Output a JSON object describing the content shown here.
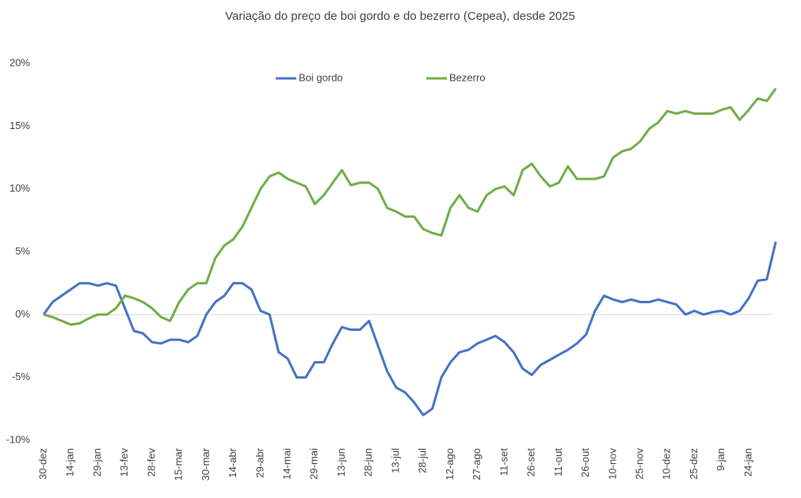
{
  "chart_data": {
    "type": "line",
    "title": "Variação do preço de boi gordo  e do bezerro (Cepea), desde 2025",
    "categories": [
      "30-dez",
      null,
      null,
      "14-jan",
      null,
      null,
      "29-jan",
      null,
      null,
      "13-fev",
      null,
      null,
      "28-fev",
      null,
      null,
      "15-mar",
      null,
      null,
      "30-mar",
      null,
      null,
      "14-abr",
      null,
      null,
      "29-abr",
      null,
      null,
      "14-mai",
      null,
      null,
      "29-mai",
      null,
      null,
      "13-jun",
      null,
      null,
      "28-jun",
      null,
      null,
      "13-jul",
      null,
      null,
      "28-jul",
      null,
      null,
      "12-ago",
      null,
      null,
      "27-ago",
      null,
      null,
      "11-set",
      null,
      null,
      "26-set",
      null,
      null,
      "11-out",
      null,
      null,
      "26-out",
      null,
      null,
      "10-nov",
      null,
      null,
      "25-nov",
      null,
      null,
      "10-dez",
      null,
      null,
      "25-dez",
      null,
      null,
      "9-jan",
      null,
      null,
      "24-jan",
      null,
      null,
      null
    ],
    "series": [
      {
        "name": "Boi gordo",
        "color": "#4472c4",
        "values": [
          0,
          1.0,
          1.5,
          2.0,
          2.5,
          2.5,
          2.3,
          2.5,
          2.3,
          0.5,
          -1.3,
          -1.5,
          -2.2,
          -2.3,
          -2.0,
          -2.0,
          -2.2,
          -1.7,
          0,
          1.0,
          1.5,
          2.5,
          2.5,
          2.0,
          0.3,
          0,
          -3.0,
          -3.5,
          -5.0,
          -5.0,
          -3.8,
          -3.8,
          -2.3,
          -1.0,
          -1.2,
          -1.2,
          -0.5,
          -2.5,
          -4.5,
          -5.8,
          -6.2,
          -7.0,
          -8.0,
          -7.5,
          -5.0,
          -3.8,
          -3.0,
          -2.8,
          -2.3,
          -2.0,
          -1.7,
          -2.2,
          -3.0,
          -4.3,
          -4.8,
          -4.0,
          -3.6,
          -3.2,
          -2.8,
          -2.3,
          -1.6,
          0.3,
          1.5,
          1.2,
          1.0,
          1.2,
          1.0,
          1.0,
          1.2,
          1.0,
          0.8,
          0,
          0.3,
          0,
          0.2,
          0.3,
          0,
          0.3,
          1.3,
          2.7,
          2.8,
          5.8
        ]
      },
      {
        "name": "Bezerro",
        "color": "#70ad47",
        "values": [
          0,
          -0.2,
          -0.5,
          -0.8,
          -0.7,
          -0.3,
          0,
          0,
          0.5,
          1.5,
          1.3,
          1.0,
          0.5,
          -0.2,
          -0.5,
          1.0,
          2.0,
          2.5,
          2.5,
          4.5,
          5.5,
          6.0,
          7.0,
          8.5,
          10.0,
          11.0,
          11.3,
          10.8,
          10.5,
          10.2,
          8.8,
          9.5,
          10.5,
          11.5,
          10.3,
          10.5,
          10.5,
          10.0,
          8.5,
          8.2,
          7.8,
          7.8,
          6.8,
          6.5,
          6.3,
          8.5,
          9.5,
          8.5,
          8.2,
          9.5,
          10.0,
          10.2,
          9.5,
          11.5,
          12.0,
          11.0,
          10.2,
          10.5,
          11.8,
          10.8,
          10.8,
          10.8,
          11.0,
          12.5,
          13.0,
          13.2,
          13.8,
          14.8,
          15.3,
          16.2,
          16.0,
          16.2,
          16.0,
          16.0,
          16.0,
          16.3,
          16.5,
          15.5,
          16.3,
          17.2,
          17.0,
          18.0
        ]
      }
    ],
    "ylim": [
      -10,
      20
    ],
    "yticks": [
      {
        "value": -10,
        "label": "-10%"
      },
      {
        "value": -5,
        "label": "-5%"
      },
      {
        "value": 0,
        "label": "0%"
      },
      {
        "value": 5,
        "label": "5%"
      },
      {
        "value": 10,
        "label": "10%"
      },
      {
        "value": 15,
        "label": "15%"
      },
      {
        "value": 20,
        "label": "20%"
      }
    ],
    "grid": false,
    "legend": "top"
  }
}
